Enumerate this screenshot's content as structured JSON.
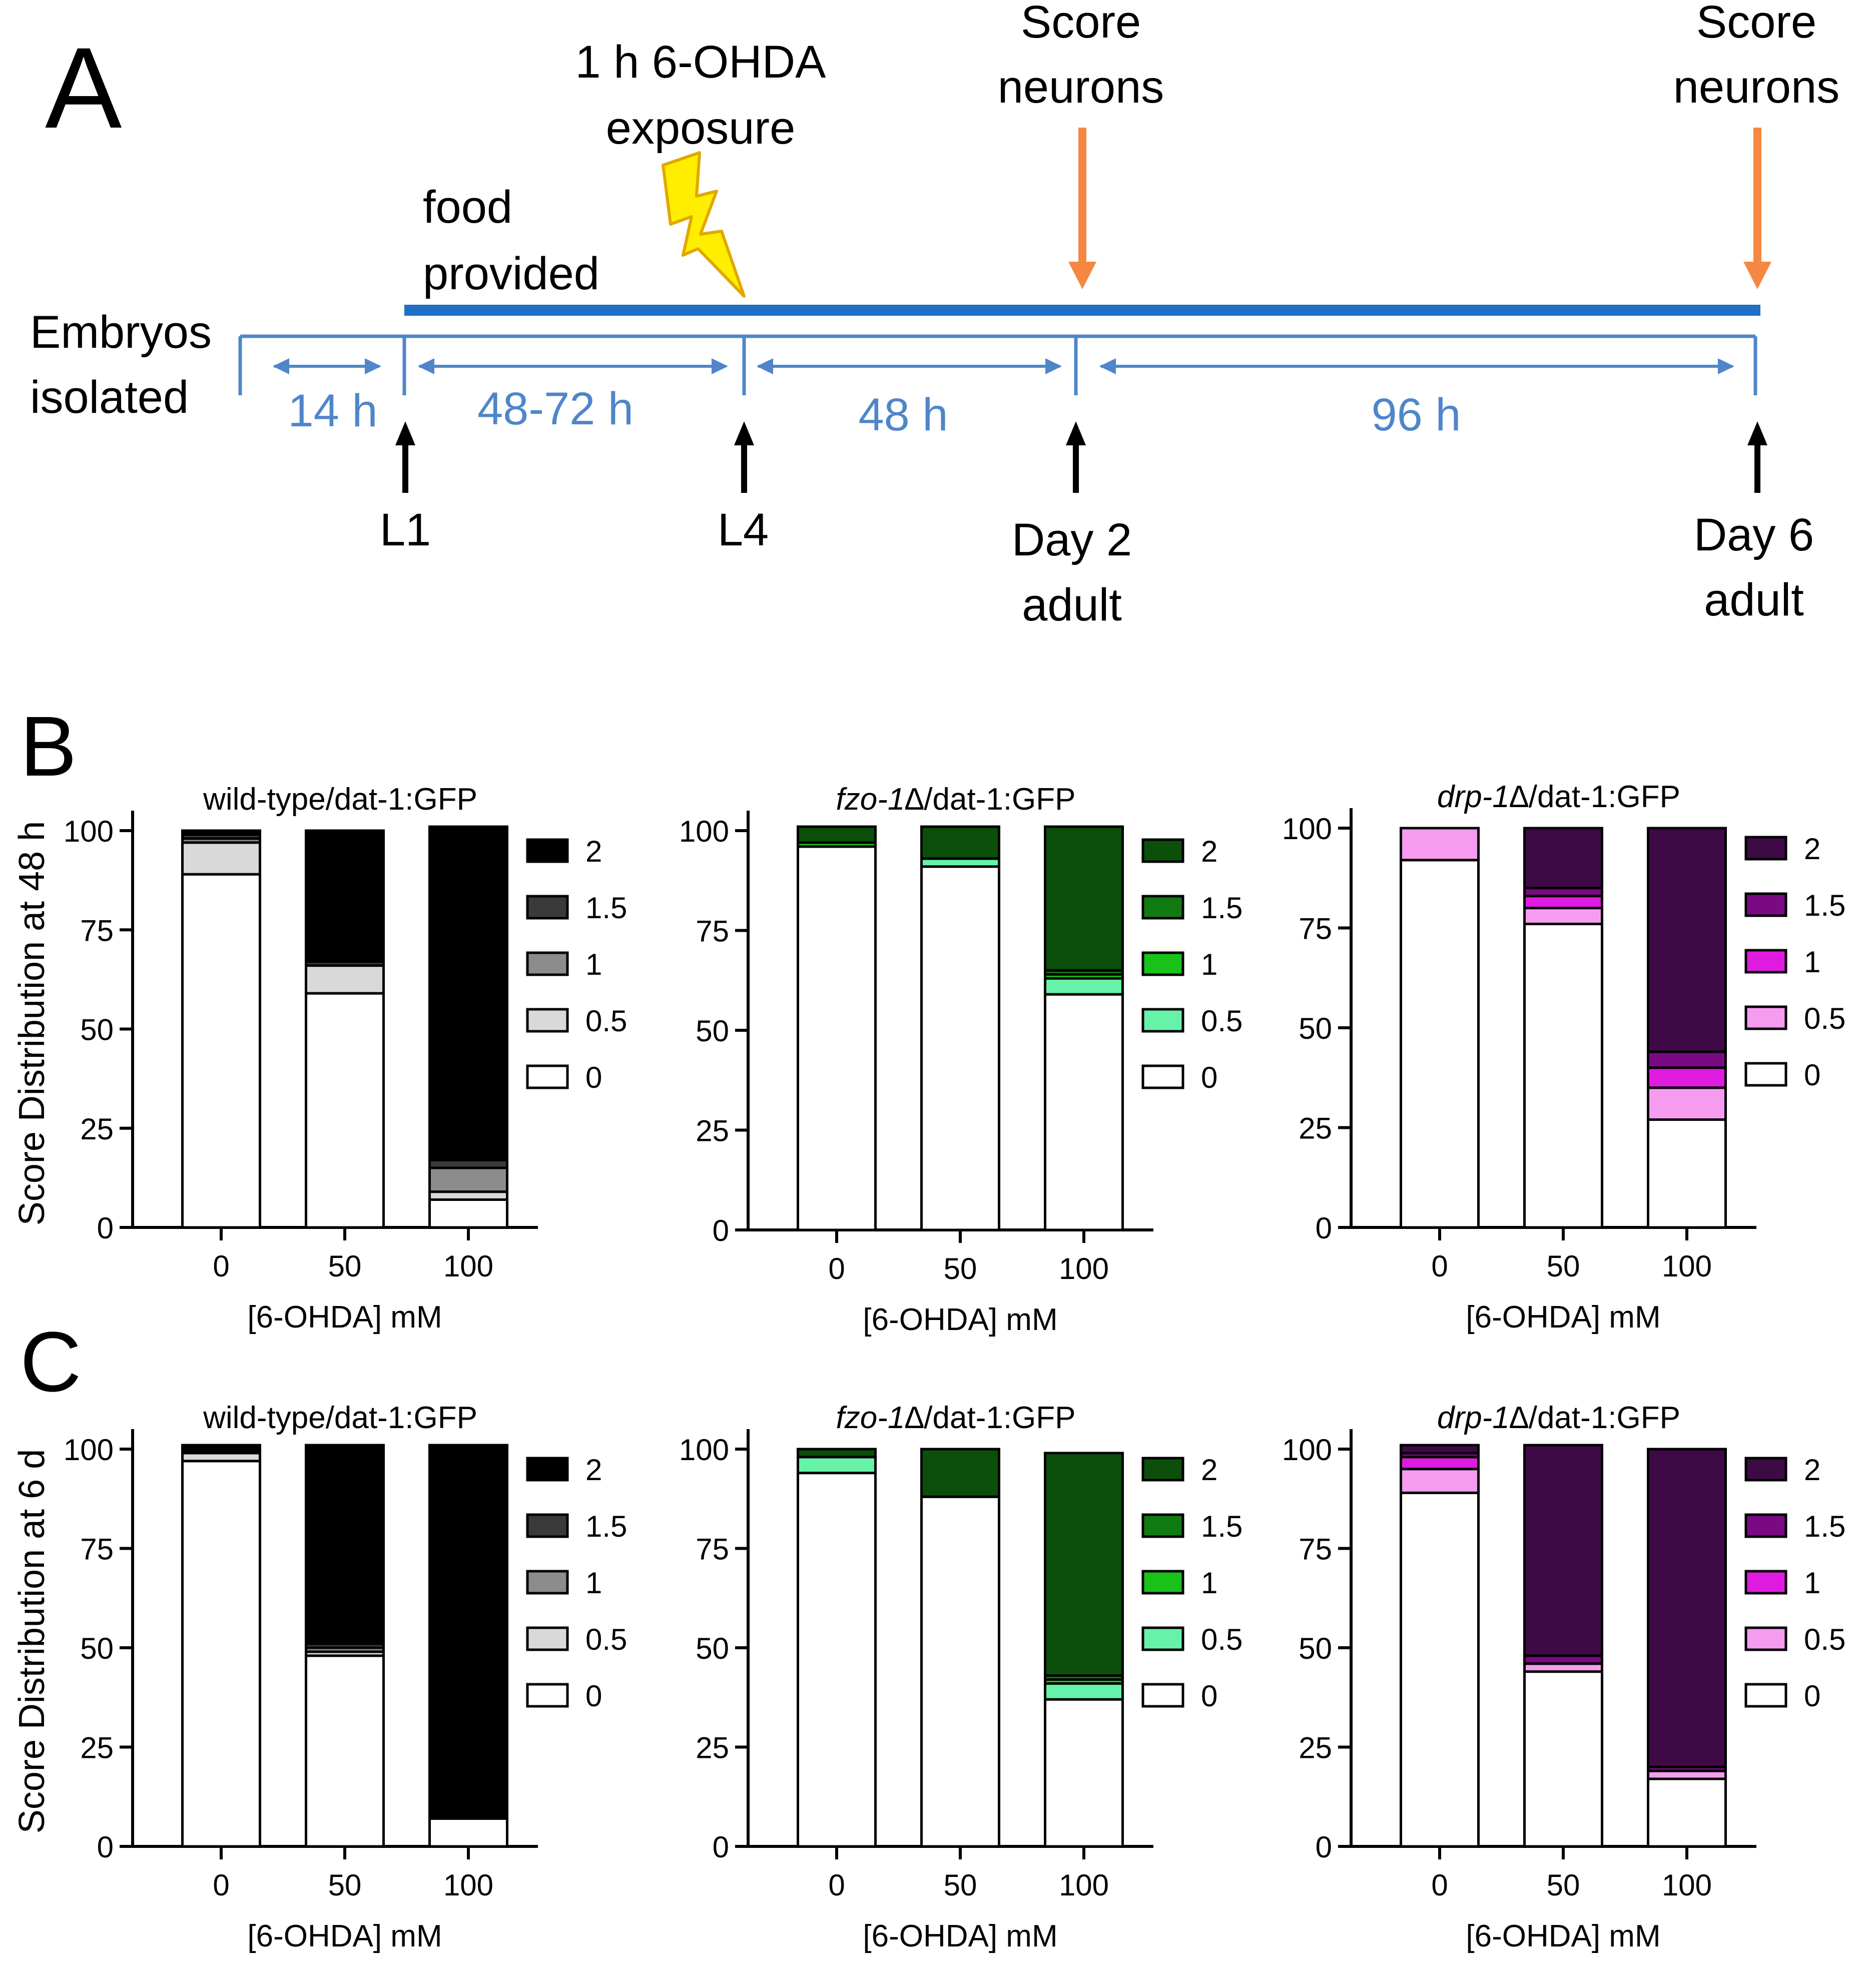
{
  "colors": {
    "timeline": "#1f6fc4",
    "annot": "#4f86c9",
    "orange": "#f58742",
    "bolt_fill": "#ffee00",
    "bolt_stroke": "#e0a800",
    "ink": "#000000"
  },
  "panelA": {
    "label": "A",
    "exposure_line1": "1 h 6-OHDA",
    "exposure_line2": "exposure",
    "score1_line1": "Score",
    "score1_line2": "neurons",
    "score2_line1": "Score",
    "score2_line2": "neurons",
    "food_line1": "food",
    "food_line2": "provided",
    "embryos_line1": "Embryos",
    "embryos_line2": "isolated",
    "intervals": [
      "14 h",
      "48-72 h",
      "48 h",
      "96 h"
    ],
    "stage_L1": "L1",
    "stage_L4": "L4",
    "stage_day2_line1": "Day 2",
    "stage_day2_line2": "adult",
    "stage_day6_line1": "Day 6",
    "stage_day6_line2": "adult"
  },
  "panelB": {
    "label": "B",
    "ylabel": "Score Distribution at 48 h"
  },
  "panelC": {
    "label": "C",
    "ylabel": "Score Distribution at 6 d"
  },
  "chart_data": [
    {
      "id": "B1",
      "type": "bar",
      "stacked": true,
      "title": "wild-type/dat-1:GFP",
      "title_italic": "",
      "xlabel": "[6-OHDA] mM",
      "ylabel": "Score Distribution at 48 h",
      "categories": [
        "0",
        "50",
        "100"
      ],
      "ylim": [
        0,
        100
      ],
      "yticks": [
        "0",
        "25",
        "50",
        "75",
        "100"
      ],
      "legend": [
        "2",
        "1.5",
        "1",
        "0.5",
        "0"
      ],
      "series": [
        {
          "name": "0",
          "color": "#ffffff",
          "values": [
            89,
            59,
            7
          ]
        },
        {
          "name": "0.5",
          "color": "#d9d9d9",
          "values": [
            8,
            7,
            2
          ]
        },
        {
          "name": "1",
          "color": "#8c8c8c",
          "values": [
            1,
            0,
            6
          ]
        },
        {
          "name": "1.5",
          "color": "#3a3a3a",
          "values": [
            1,
            1,
            2
          ]
        },
        {
          "name": "2",
          "color": "#000000",
          "values": [
            1,
            33,
            84
          ]
        }
      ]
    },
    {
      "id": "B2",
      "type": "bar",
      "stacked": true,
      "title": "/dat-1:GFP",
      "title_italic": "fzo-1∆",
      "xlabel": "[6-OHDA] mM",
      "ylabel": "Score Distribution at 48 h",
      "categories": [
        "0",
        "50",
        "100"
      ],
      "ylim": [
        0,
        100
      ],
      "yticks": [
        "0",
        "25",
        "50",
        "75",
        "100"
      ],
      "legend": [
        "2",
        "1.5",
        "1",
        "0.5",
        "0"
      ],
      "series": [
        {
          "name": "0",
          "color": "#ffffff",
          "values": [
            96,
            91,
            59
          ]
        },
        {
          "name": "0.5",
          "color": "#66f2a8",
          "values": [
            0,
            2,
            4
          ]
        },
        {
          "name": "1",
          "color": "#19c219",
          "values": [
            1,
            0,
            1
          ]
        },
        {
          "name": "1.5",
          "color": "#127a12",
          "values": [
            0,
            0,
            1
          ]
        },
        {
          "name": "2",
          "color": "#0b4f0b",
          "values": [
            4,
            8,
            36
          ]
        }
      ]
    },
    {
      "id": "B3",
      "type": "bar",
      "stacked": true,
      "title": "/dat-1:GFP",
      "title_italic": "drp-1∆",
      "xlabel": "[6-OHDA] mM",
      "ylabel": "Score Distribution at 48 h",
      "categories": [
        "0",
        "50",
        "100"
      ],
      "ylim": [
        0,
        100
      ],
      "yticks": [
        "0",
        "25",
        "50",
        "75",
        "100"
      ],
      "legend": [
        "2",
        "1.5",
        "1",
        "0.5",
        "0"
      ],
      "series": [
        {
          "name": "0",
          "color": "#ffffff",
          "values": [
            92,
            76,
            27
          ]
        },
        {
          "name": "0.5",
          "color": "#f59cf0",
          "values": [
            8,
            4,
            8
          ]
        },
        {
          "name": "1",
          "color": "#e01be0",
          "values": [
            0,
            3,
            5
          ]
        },
        {
          "name": "1.5",
          "color": "#7a0a84",
          "values": [
            0,
            2,
            4
          ]
        },
        {
          "name": "2",
          "color": "#3e0a46",
          "values": [
            0,
            15,
            56
          ]
        }
      ]
    },
    {
      "id": "C1",
      "type": "bar",
      "stacked": true,
      "title": "wild-type/dat-1:GFP",
      "title_italic": "",
      "xlabel": "[6-OHDA] mM",
      "ylabel": "Score Distribution at 6 d",
      "categories": [
        "0",
        "50",
        "100"
      ],
      "ylim": [
        0,
        100
      ],
      "yticks": [
        "0",
        "25",
        "50",
        "75",
        "100"
      ],
      "legend": [
        "2",
        "1.5",
        "1",
        "0.5",
        "0"
      ],
      "series": [
        {
          "name": "0",
          "color": "#ffffff",
          "values": [
            97,
            48,
            7
          ]
        },
        {
          "name": "0.5",
          "color": "#d9d9d9",
          "values": [
            2,
            1,
            0
          ]
        },
        {
          "name": "1",
          "color": "#8c8c8c",
          "values": [
            0,
            1,
            0
          ]
        },
        {
          "name": "1.5",
          "color": "#3a3a3a",
          "values": [
            0,
            1,
            0
          ]
        },
        {
          "name": "2",
          "color": "#000000",
          "values": [
            2,
            50,
            94
          ]
        }
      ]
    },
    {
      "id": "C2",
      "type": "bar",
      "stacked": true,
      "title": "/dat-1:GFP",
      "title_italic": "fzo-1∆",
      "xlabel": "[6-OHDA] mM",
      "ylabel": "Score Distribution at 6 d",
      "categories": [
        "0",
        "50",
        "100"
      ],
      "ylim": [
        0,
        100
      ],
      "yticks": [
        "0",
        "25",
        "50",
        "75",
        "100"
      ],
      "legend": [
        "2",
        "1.5",
        "1",
        "0.5",
        "0"
      ],
      "series": [
        {
          "name": "0",
          "color": "#ffffff",
          "values": [
            94,
            88,
            37
          ]
        },
        {
          "name": "0.5",
          "color": "#66f2a8",
          "values": [
            4,
            0,
            4
          ]
        },
        {
          "name": "1",
          "color": "#19c219",
          "values": [
            0,
            0,
            1
          ]
        },
        {
          "name": "1.5",
          "color": "#127a12",
          "values": [
            0,
            0,
            1
          ]
        },
        {
          "name": "2",
          "color": "#0b4f0b",
          "values": [
            2,
            12,
            56
          ]
        }
      ]
    },
    {
      "id": "C3",
      "type": "bar",
      "stacked": true,
      "title": "/dat-1:GFP",
      "title_italic": "drp-1∆",
      "xlabel": "[6-OHDA] mM",
      "ylabel": "Score Distribution at 6 d",
      "categories": [
        "0",
        "50",
        "100"
      ],
      "ylim": [
        0,
        100
      ],
      "yticks": [
        "0",
        "25",
        "50",
        "75",
        "100"
      ],
      "legend": [
        "2",
        "1.5",
        "1",
        "0.5",
        "0"
      ],
      "series": [
        {
          "name": "0",
          "color": "#ffffff",
          "values": [
            89,
            44,
            17
          ]
        },
        {
          "name": "0.5",
          "color": "#f59cf0",
          "values": [
            6,
            2,
            2
          ]
        },
        {
          "name": "1",
          "color": "#e01be0",
          "values": [
            3,
            0,
            0
          ]
        },
        {
          "name": "1.5",
          "color": "#7a0a84",
          "values": [
            1,
            2,
            1
          ]
        },
        {
          "name": "2",
          "color": "#3e0a46",
          "values": [
            2,
            53,
            80
          ]
        }
      ]
    }
  ]
}
